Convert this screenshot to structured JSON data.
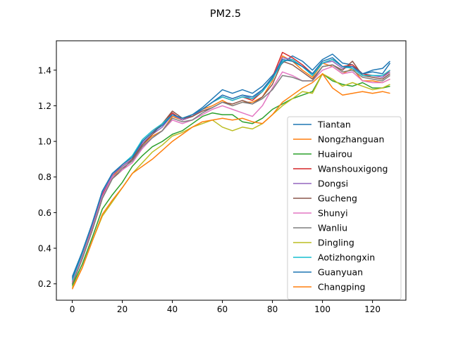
{
  "chart_data": {
    "type": "line",
    "title": "PM2.5",
    "xlabel": "",
    "ylabel": "",
    "xlim": [
      -6.35,
      133.35
    ],
    "ylim": [
      0.108,
      1.565
    ],
    "xticks": [
      0,
      20,
      40,
      60,
      80,
      100,
      120
    ],
    "xtick_labels": [
      "0",
      "20",
      "40",
      "60",
      "80",
      "100",
      "120"
    ],
    "yticks": [
      0.2,
      0.4,
      0.6,
      0.8,
      1.0,
      1.2,
      1.4
    ],
    "ytick_labels": [
      "0.2",
      "0.4",
      "0.6",
      "0.8",
      "1.0",
      "1.2",
      "1.4"
    ],
    "grid": false,
    "legend_position": "lower-right",
    "x": [
      0,
      4,
      8,
      12,
      16,
      20,
      24,
      28,
      32,
      36,
      40,
      44,
      48,
      52,
      56,
      60,
      64,
      68,
      72,
      76,
      80,
      84,
      88,
      92,
      96,
      100,
      104,
      108,
      112,
      116,
      120,
      124,
      127
    ],
    "series": [
      {
        "name": "Tiantan",
        "color": "#1f77b4",
        "values": [
          0.24,
          0.38,
          0.54,
          0.72,
          0.82,
          0.86,
          0.9,
          0.97,
          1.02,
          1.06,
          1.14,
          1.12,
          1.15,
          1.19,
          1.24,
          1.29,
          1.27,
          1.29,
          1.27,
          1.31,
          1.37,
          1.44,
          1.48,
          1.45,
          1.4,
          1.46,
          1.49,
          1.44,
          1.43,
          1.38,
          1.4,
          1.41,
          1.45
        ]
      },
      {
        "name": "Nongzhanguan",
        "color": "#ff7f0e",
        "values": [
          0.2,
          0.34,
          0.5,
          0.68,
          0.8,
          0.86,
          0.9,
          0.98,
          1.03,
          1.06,
          1.14,
          1.12,
          1.14,
          1.18,
          1.2,
          1.23,
          1.2,
          1.22,
          1.22,
          1.25,
          1.34,
          1.48,
          1.45,
          1.4,
          1.36,
          1.44,
          1.42,
          1.38,
          1.41,
          1.34,
          1.34,
          1.33,
          1.35
        ]
      },
      {
        "name": "Huairou",
        "color": "#2ca02c",
        "values": [
          0.19,
          0.31,
          0.46,
          0.62,
          0.7,
          0.77,
          0.86,
          0.92,
          0.97,
          1.0,
          1.04,
          1.06,
          1.1,
          1.14,
          1.16,
          1.15,
          1.15,
          1.11,
          1.1,
          1.13,
          1.18,
          1.21,
          1.24,
          1.26,
          1.28,
          1.38,
          1.34,
          1.32,
          1.31,
          1.33,
          1.3,
          1.3,
          1.31
        ]
      },
      {
        "name": "Wanshouxigong",
        "color": "#d62728",
        "values": [
          0.21,
          0.36,
          0.52,
          0.7,
          0.81,
          0.86,
          0.9,
          1.0,
          1.05,
          1.1,
          1.16,
          1.12,
          1.14,
          1.18,
          1.22,
          1.25,
          1.23,
          1.25,
          1.23,
          1.28,
          1.36,
          1.5,
          1.47,
          1.43,
          1.38,
          1.44,
          1.46,
          1.42,
          1.43,
          1.38,
          1.37,
          1.36,
          1.4
        ]
      },
      {
        "name": "Dongsi",
        "color": "#9467bd",
        "values": [
          0.22,
          0.37,
          0.53,
          0.71,
          0.81,
          0.86,
          0.9,
          0.99,
          1.04,
          1.08,
          1.15,
          1.12,
          1.14,
          1.18,
          1.22,
          1.26,
          1.24,
          1.26,
          1.24,
          1.29,
          1.36,
          1.47,
          1.46,
          1.42,
          1.38,
          1.44,
          1.45,
          1.41,
          1.42,
          1.37,
          1.37,
          1.36,
          1.39
        ]
      },
      {
        "name": "Gucheng",
        "color": "#8c564b",
        "values": [
          0.2,
          0.34,
          0.5,
          0.68,
          0.79,
          0.84,
          0.9,
          0.98,
          1.04,
          1.1,
          1.17,
          1.13,
          1.14,
          1.17,
          1.19,
          1.22,
          1.21,
          1.23,
          1.21,
          1.25,
          1.32,
          1.45,
          1.43,
          1.39,
          1.35,
          1.42,
          1.43,
          1.4,
          1.45,
          1.37,
          1.36,
          1.35,
          1.38
        ]
      },
      {
        "name": "Shunyi",
        "color": "#e377c2",
        "values": [
          0.21,
          0.35,
          0.51,
          0.69,
          0.8,
          0.84,
          0.88,
          0.96,
          1.02,
          1.06,
          1.12,
          1.1,
          1.12,
          1.15,
          1.18,
          1.2,
          1.18,
          1.16,
          1.14,
          1.2,
          1.3,
          1.39,
          1.37,
          1.34,
          1.34,
          1.4,
          1.42,
          1.38,
          1.39,
          1.34,
          1.33,
          1.33,
          1.35
        ]
      },
      {
        "name": "Wanliu",
        "color": "#7f7f7f",
        "values": [
          0.2,
          0.34,
          0.5,
          0.68,
          0.79,
          0.85,
          0.89,
          0.97,
          1.02,
          1.06,
          1.13,
          1.11,
          1.12,
          1.16,
          1.19,
          1.22,
          1.2,
          1.22,
          1.21,
          1.24,
          1.29,
          1.37,
          1.36,
          1.34,
          1.34,
          1.42,
          1.43,
          1.39,
          1.4,
          1.36,
          1.35,
          1.34,
          1.37
        ]
      },
      {
        "name": "Dingling",
        "color": "#bcbd22",
        "values": [
          0.18,
          0.29,
          0.44,
          0.58,
          0.66,
          0.74,
          0.82,
          0.88,
          0.94,
          0.98,
          1.03,
          1.05,
          1.08,
          1.1,
          1.12,
          1.08,
          1.06,
          1.08,
          1.07,
          1.1,
          1.15,
          1.2,
          1.24,
          1.28,
          1.27,
          1.38,
          1.35,
          1.31,
          1.33,
          1.31,
          1.29,
          1.3,
          1.32
        ]
      },
      {
        "name": "Aotizhongxin",
        "color": "#17becf",
        "values": [
          0.22,
          0.37,
          0.54,
          0.72,
          0.82,
          0.87,
          0.92,
          1.01,
          1.06,
          1.1,
          1.15,
          1.13,
          1.15,
          1.18,
          1.22,
          1.25,
          1.23,
          1.25,
          1.24,
          1.28,
          1.35,
          1.45,
          1.46,
          1.42,
          1.37,
          1.44,
          1.46,
          1.42,
          1.41,
          1.37,
          1.37,
          1.37,
          1.4
        ]
      },
      {
        "name": "Guanyuan",
        "color": "#1f77b4",
        "values": [
          0.23,
          0.38,
          0.54,
          0.72,
          0.82,
          0.87,
          0.91,
          1.0,
          1.05,
          1.09,
          1.15,
          1.13,
          1.15,
          1.18,
          1.22,
          1.26,
          1.24,
          1.26,
          1.25,
          1.29,
          1.36,
          1.46,
          1.45,
          1.42,
          1.38,
          1.45,
          1.47,
          1.42,
          1.42,
          1.38,
          1.39,
          1.38,
          1.44
        ]
      },
      {
        "name": "Changping",
        "color": "#ff7f0e",
        "values": [
          0.17,
          0.29,
          0.44,
          0.59,
          0.67,
          0.74,
          0.82,
          0.86,
          0.9,
          0.95,
          1.0,
          1.04,
          1.08,
          1.11,
          1.12,
          1.13,
          1.12,
          1.13,
          1.11,
          1.1,
          1.15,
          1.22,
          1.26,
          1.3,
          1.33,
          1.38,
          1.3,
          1.26,
          1.27,
          1.28,
          1.27,
          1.28,
          1.27
        ]
      }
    ]
  }
}
